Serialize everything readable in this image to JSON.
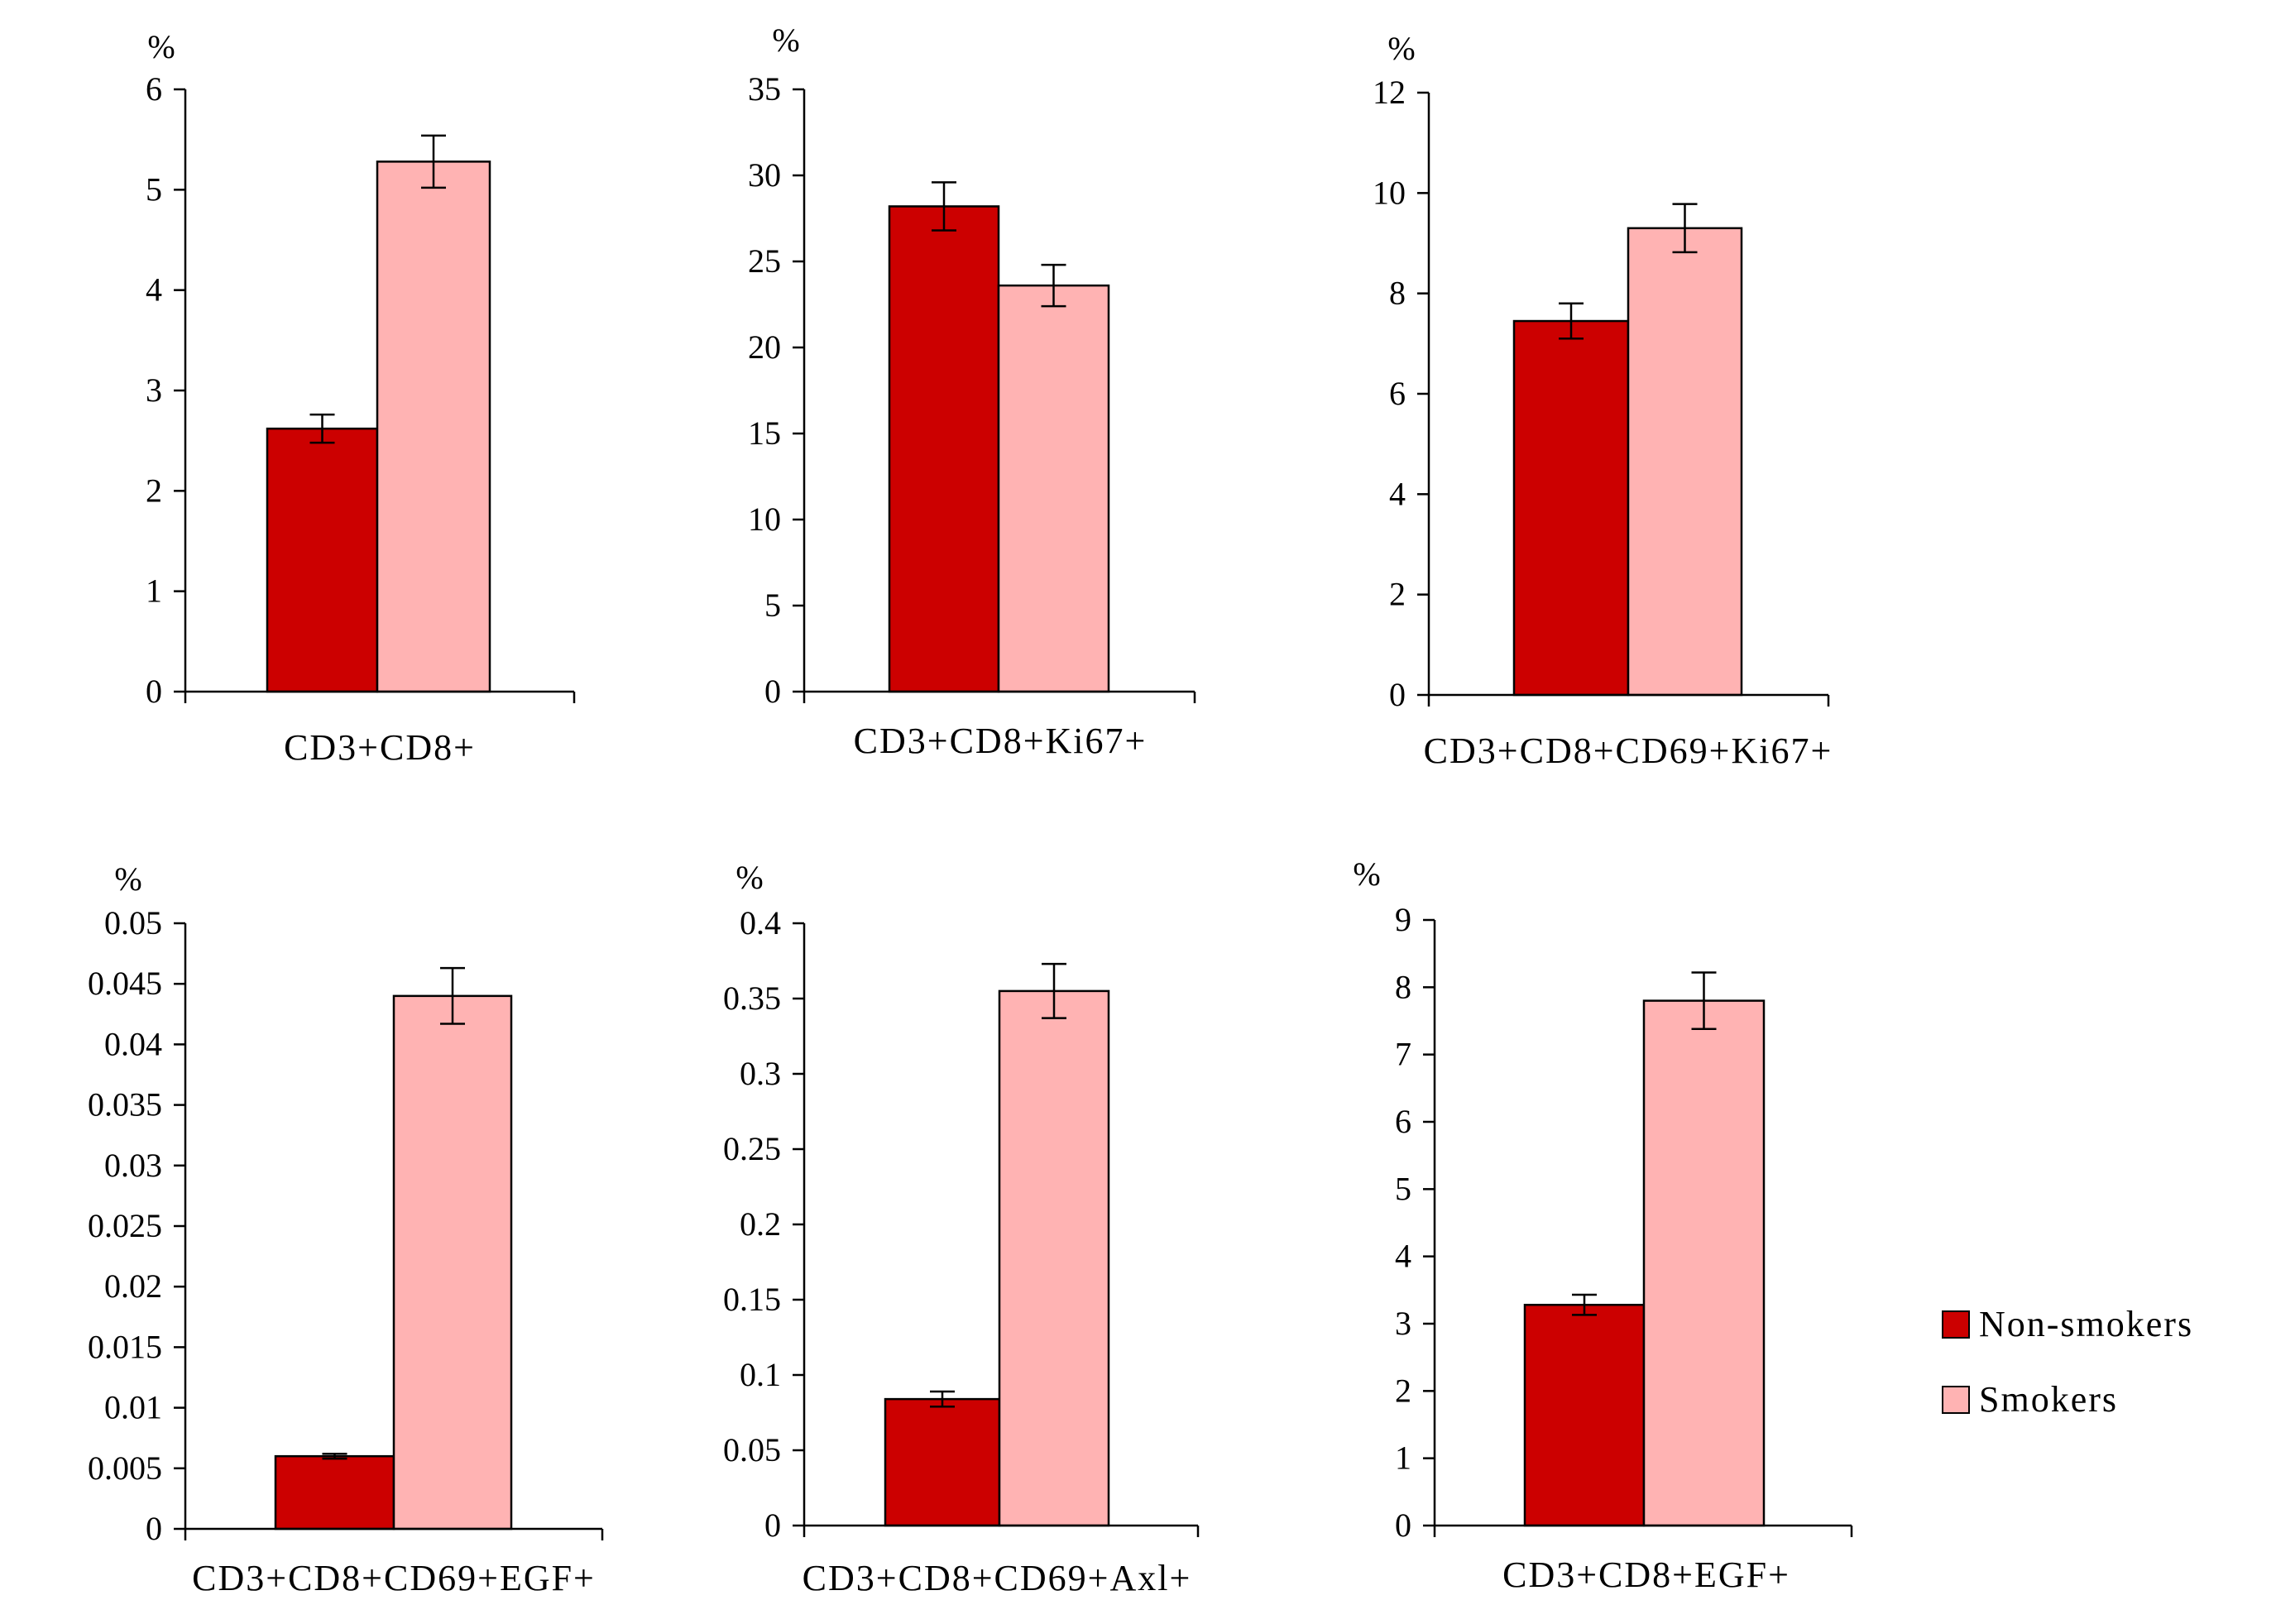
{
  "colors": {
    "non_smokers": "#CC0000",
    "smokers": "#FFB3B3",
    "stroke": "#000000"
  },
  "legend": {
    "items": [
      {
        "label": "Non-smokers",
        "color": "#CC0000"
      },
      {
        "label": "Smokers",
        "color": "#FFB3B3"
      }
    ]
  },
  "chart_data": [
    {
      "type": "bar",
      "ylabel": "%",
      "xlabel": "",
      "categories": [
        "CD3+CD8+"
      ],
      "ylim": [
        0,
        6
      ],
      "yticks": [
        0,
        1,
        2,
        3,
        4,
        5,
        6
      ],
      "ytick_labels": [
        "0",
        "1",
        "2",
        "3",
        "4",
        "5",
        "6"
      ],
      "series": [
        {
          "name": "Non-smokers",
          "values": [
            2.62
          ],
          "errors": [
            0.14
          ]
        },
        {
          "name": "Smokers",
          "values": [
            5.28
          ],
          "errors": [
            0.26
          ]
        }
      ]
    },
    {
      "type": "bar",
      "ylabel": "%",
      "xlabel": "",
      "categories": [
        "CD3+CD8+Ki67+"
      ],
      "ylim": [
        0,
        35
      ],
      "yticks": [
        0,
        5,
        10,
        15,
        20,
        25,
        30,
        35
      ],
      "ytick_labels": [
        "0",
        "5",
        "10",
        "15",
        "20",
        "25",
        "30",
        "35"
      ],
      "series": [
        {
          "name": "Non-smokers",
          "values": [
            28.2
          ],
          "errors": [
            1.4
          ]
        },
        {
          "name": "Smokers",
          "values": [
            23.6
          ],
          "errors": [
            1.2
          ]
        }
      ]
    },
    {
      "type": "bar",
      "ylabel": "%",
      "xlabel": "",
      "categories": [
        "CD3+CD8+CD69+Ki67+"
      ],
      "ylim": [
        0,
        12
      ],
      "yticks": [
        0,
        2,
        4,
        6,
        8,
        10,
        12
      ],
      "ytick_labels": [
        "0",
        "2",
        "4",
        "6",
        "8",
        "10",
        "12"
      ],
      "series": [
        {
          "name": "Non-smokers",
          "values": [
            7.45
          ],
          "errors": [
            0.35
          ]
        },
        {
          "name": "Smokers",
          "values": [
            9.3
          ],
          "errors": [
            0.48
          ]
        }
      ]
    },
    {
      "type": "bar",
      "ylabel": "%",
      "xlabel": "",
      "categories": [
        "CD3+CD8+CD69+EGF+"
      ],
      "ylim": [
        0,
        0.05
      ],
      "yticks": [
        0,
        0.005,
        0.01,
        0.015,
        0.02,
        0.025,
        0.03,
        0.035,
        0.04,
        0.045,
        0.05
      ],
      "ytick_labels": [
        "0",
        "0.005",
        "0.01",
        "0.015",
        "0.02",
        "0.025",
        "0.03",
        "0.035",
        "0.04",
        "0.045",
        "0.05"
      ],
      "series": [
        {
          "name": "Non-smokers",
          "values": [
            0.006
          ],
          "errors": [
            0.0002
          ]
        },
        {
          "name": "Smokers",
          "values": [
            0.044
          ],
          "errors": [
            0.0023
          ]
        }
      ]
    },
    {
      "type": "bar",
      "ylabel": "%",
      "xlabel": "",
      "categories": [
        "CD3+CD8+CD69+Axl+"
      ],
      "ylim": [
        0,
        0.4
      ],
      "yticks": [
        0,
        0.05,
        0.1,
        0.15,
        0.2,
        0.25,
        0.3,
        0.35,
        0.4
      ],
      "ytick_labels": [
        "0",
        "0.05",
        "0.1",
        "0.15",
        "0.2",
        "0.25",
        "0.3",
        "0.35",
        "0.4"
      ],
      "series": [
        {
          "name": "Non-smokers",
          "values": [
            0.084
          ],
          "errors": [
            0.005
          ]
        },
        {
          "name": "Smokers",
          "values": [
            0.355
          ],
          "errors": [
            0.018
          ]
        }
      ]
    },
    {
      "type": "bar",
      "ylabel": "%",
      "xlabel": "",
      "categories": [
        "CD3+CD8+EGF+"
      ],
      "ylim": [
        0,
        9
      ],
      "yticks": [
        0,
        1,
        2,
        3,
        4,
        5,
        6,
        7,
        8,
        9
      ],
      "ytick_labels": [
        "0",
        "1",
        "2",
        "3",
        "4",
        "5",
        "6",
        "7",
        "8",
        "9"
      ],
      "series": [
        {
          "name": "Non-smokers",
          "values": [
            3.28
          ],
          "errors": [
            0.15
          ]
        },
        {
          "name": "Smokers",
          "values": [
            7.8
          ],
          "errors": [
            0.42
          ]
        }
      ]
    }
  ]
}
